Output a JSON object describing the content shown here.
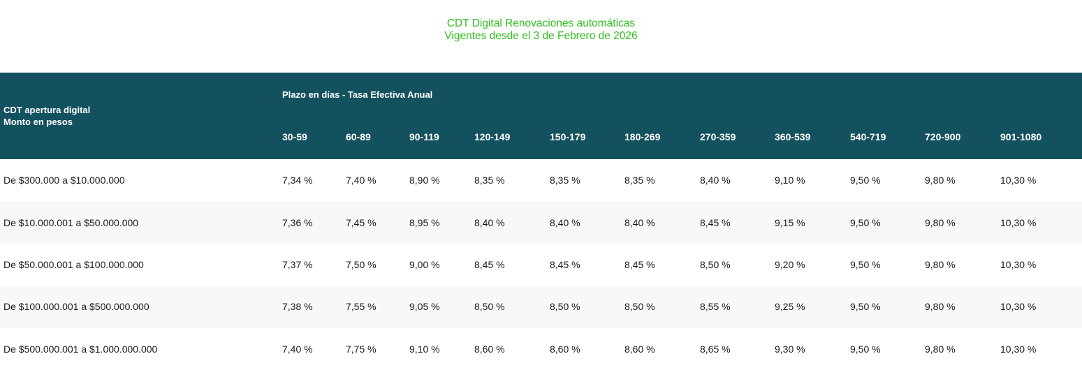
{
  "title": {
    "line1": "CDT Digital Renovaciones automáticas",
    "line2": "Vigentes desde el 3 de Febrero de 2026"
  },
  "table": {
    "amount_header": {
      "line1": "CDT apertura digital",
      "line2": "Monto en pesos"
    },
    "term_header": "Plazo en días - Tasa Efectiva Anual",
    "terms": [
      "30-59",
      "60-89",
      "90-119",
      "120-149",
      "150-179",
      "180-269",
      "270-359",
      "360-539",
      "540-719",
      "720-900",
      "901-1080"
    ],
    "rows": [
      {
        "amount": "De $300.000 a $10.000.000",
        "rates": [
          "7,34 %",
          "7,40 %",
          "8,90 %",
          "8,35 %",
          "8,35 %",
          "8,35 %",
          "8,40 %",
          "9,10 %",
          "9,50 %",
          "9,80 %",
          "10,30 %"
        ]
      },
      {
        "amount": "De $10.000.001 a $50.000.000",
        "rates": [
          "7,36 %",
          "7,45 %",
          "8,95 %",
          "8,40 %",
          "8,40 %",
          "8,40 %",
          "8,45 %",
          "9,15 %",
          "9,50 %",
          "9,80 %",
          "10,30 %"
        ]
      },
      {
        "amount": "De $50.000.001 a $100.000.000",
        "rates": [
          "7,37 %",
          "7,50 %",
          "9,00 %",
          "8,45 %",
          "8,45 %",
          "8,45 %",
          "8,50 %",
          "9,20 %",
          "9,50 %",
          "9,80 %",
          "10,30 %"
        ]
      },
      {
        "amount": "De $100.000.001 a $500.000.000",
        "rates": [
          "7,38 %",
          "7,55 %",
          "9,05 %",
          "8,50 %",
          "8,50 %",
          "8,50 %",
          "8,55 %",
          "9,25 %",
          "9,50 %",
          "9,80 %",
          "10,30 %"
        ]
      },
      {
        "amount": "De $500.000.001 a $1.000.000.000",
        "rates": [
          "7,40 %",
          "7,75 %",
          "9,10 %",
          "8,60 %",
          "8,60 %",
          "8,60 %",
          "8,65 %",
          "9,30 %",
          "9,50 %",
          "9,80 %",
          "10,30 %"
        ]
      }
    ]
  },
  "colors": {
    "title_green": "#2fbf1f",
    "header_teal": "#13515f",
    "stripe": "#f8f8f8"
  }
}
